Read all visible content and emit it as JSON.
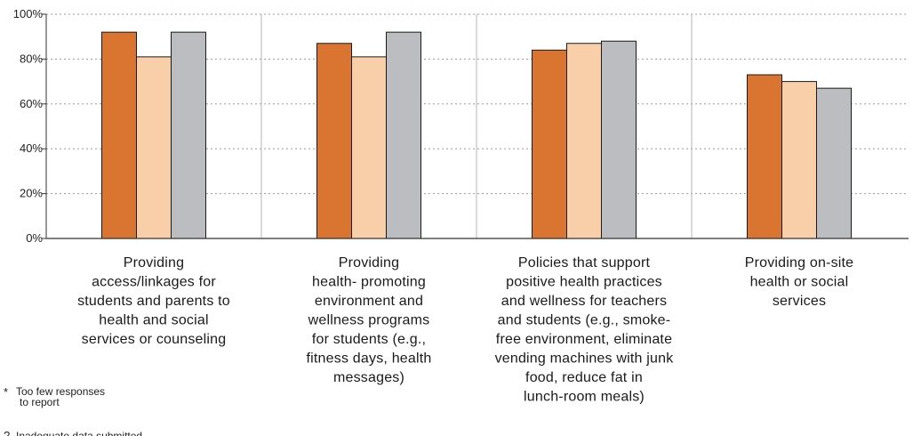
{
  "chart_data": {
    "type": "bar",
    "categories": [
      [
        "Providing",
        "access/linkages for",
        "students and parents to",
        "health and social",
        "services or counseling"
      ],
      [
        "Providing",
        "health- promoting",
        "environment and",
        "wellness programs",
        "for students (e.g.,",
        "fitness days, health",
        "messages)"
      ],
      [
        "Policies that support",
        "positive health practices",
        "and wellness for teachers",
        "and students (e.g., smoke-",
        "free environment, eliminate",
        "vending machines with junk",
        "food, reduce fat in",
        "lunch-room meals)"
      ],
      [
        "Providing on-site",
        "health or social",
        "services"
      ]
    ],
    "series": [
      {
        "values": [
          92,
          87,
          84,
          73
        ],
        "color": "#d97530"
      },
      {
        "values": [
          81,
          81,
          87,
          70
        ],
        "color": "#f9cfa9"
      },
      {
        "values": [
          92,
          92,
          88,
          67
        ],
        "color": "#bcbdc0"
      }
    ],
    "yticks": [
      "0%",
      "20%",
      "40%",
      "60%",
      "80%",
      "100%"
    ],
    "ylim": [
      0,
      100
    ],
    "grid": "horizontal dotted",
    "legend": "none"
  },
  "notes": [
    {
      "mark": "*",
      "lines": [
        "Too few responses",
        "to report"
      ]
    },
    {
      "mark": "?",
      "lines": [
        "Inadequate data submitted"
      ]
    }
  ]
}
